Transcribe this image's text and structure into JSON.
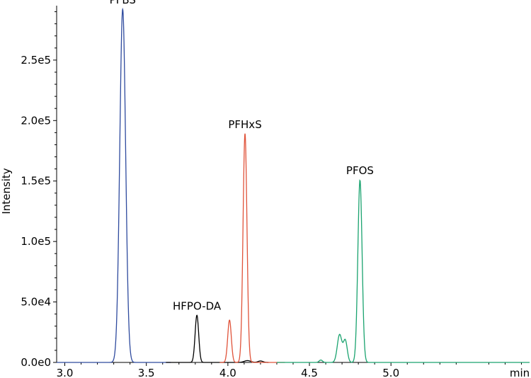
{
  "chart_data": {
    "type": "line",
    "title": "",
    "xlabel": "min",
    "ylabel": "Intensity",
    "xlim": [
      2.95,
      5.85
    ],
    "ylim": [
      0,
      295000
    ],
    "grid": false,
    "x_ticks": [
      3.0,
      3.5,
      4.0,
      4.5,
      5.0
    ],
    "x_tick_labels": [
      "3.0",
      "3.5",
      "4.0",
      "4.5",
      "5.0"
    ],
    "y_ticks": [
      0,
      50000,
      100000,
      150000,
      200000,
      250000
    ],
    "y_tick_labels": [
      "0.0e0",
      "5.0e4",
      "1.0e5",
      "1.5e5",
      "2.0e5",
      "2.5e5"
    ],
    "series": [
      {
        "name": "PFBS",
        "color": "#2e4a9e",
        "range": [
          2.95,
          3.65
        ],
        "peaks": [
          {
            "rt": 3.355,
            "height": 292000,
            "width": 0.018
          }
        ]
      },
      {
        "name": "HFPO-DA",
        "color": "#000000",
        "range": [
          3.62,
          4.25
        ],
        "peaks": [
          {
            "rt": 3.81,
            "height": 39000,
            "width": 0.011
          },
          {
            "rt": 4.12,
            "height": 1500,
            "width": 0.02
          },
          {
            "rt": 4.2,
            "height": 1200,
            "width": 0.015
          }
        ]
      },
      {
        "name": "PFHxS",
        "color": "#e0533a",
        "range": [
          3.95,
          4.35
        ],
        "peaks": [
          {
            "rt": 4.01,
            "height": 35000,
            "width": 0.011
          },
          {
            "rt": 4.105,
            "height": 189000,
            "width": 0.012
          }
        ]
      },
      {
        "name": "PFOS",
        "color": "#1aa36f",
        "range": [
          4.3,
          5.85
        ],
        "peaks": [
          {
            "rt": 4.57,
            "height": 2000,
            "width": 0.01
          },
          {
            "rt": 4.685,
            "height": 23000,
            "width": 0.014
          },
          {
            "rt": 4.72,
            "height": 18000,
            "width": 0.012
          },
          {
            "rt": 4.81,
            "height": 151000,
            "width": 0.013
          }
        ]
      }
    ],
    "annotations": [
      {
        "text": "PFBS",
        "x": 3.355,
        "y": 292000
      },
      {
        "text": "HFPO-DA",
        "x": 3.81,
        "y": 39000
      },
      {
        "text": "PFHxS",
        "x": 4.105,
        "y": 189000
      },
      {
        "text": "PFOS",
        "x": 4.81,
        "y": 151000
      }
    ]
  }
}
